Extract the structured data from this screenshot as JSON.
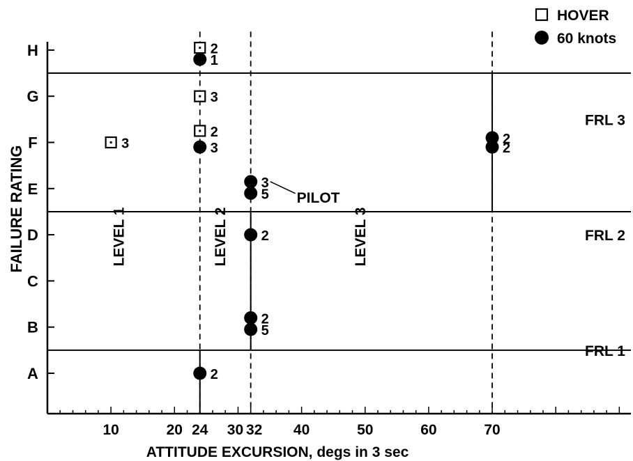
{
  "chart_data": {
    "type": "scatter",
    "xlabel": "ATTITUDE EXCURSION, degs in 3 sec",
    "ylabel": "FAILURE RATING",
    "xlim": [
      0,
      90
    ],
    "x_ticks": [
      10,
      20,
      24,
      30,
      32,
      40,
      50,
      60,
      70
    ],
    "x_tick_labels": [
      "10",
      "20",
      "24",
      "30",
      "32",
      "40",
      "50",
      "60",
      "70"
    ],
    "y_categories": [
      "A",
      "B",
      "C",
      "D",
      "E",
      "F",
      "G",
      "H"
    ],
    "legend": {
      "placement": "top-right",
      "entries": [
        {
          "label": "HOVER",
          "marker": "open-square"
        },
        {
          "label": "60 knots",
          "marker": "filled-circle"
        }
      ]
    },
    "series": [
      {
        "name": "HOVER",
        "points": [
          {
            "x": 24,
            "y": 8.05,
            "label": "2"
          },
          {
            "x": 24,
            "y": 7.0,
            "label": "3"
          },
          {
            "x": 24,
            "y": 6.25,
            "label": "2"
          },
          {
            "x": 10,
            "y": 6.0,
            "label": "3"
          }
        ]
      },
      {
        "name": "60 knots",
        "points": [
          {
            "x": 24,
            "y": 7.8,
            "label": "1"
          },
          {
            "x": 24,
            "y": 5.9,
            "label": "3"
          },
          {
            "x": 70,
            "y": 6.1,
            "label": "2"
          },
          {
            "x": 70,
            "y": 5.9,
            "label": "2"
          },
          {
            "x": 32,
            "y": 5.15,
            "label": "3"
          },
          {
            "x": 32,
            "y": 4.9,
            "label": "5"
          },
          {
            "x": 32,
            "y": 4.0,
            "label": "2"
          },
          {
            "x": 32,
            "y": 2.2,
            "label": "2"
          },
          {
            "x": 32,
            "y": 1.95,
            "label": "5"
          },
          {
            "x": 24,
            "y": 1.0,
            "label": "2"
          }
        ]
      }
    ],
    "boundaries_y": [
      1.5,
      4.5,
      7.5
    ],
    "frl_labels": [
      {
        "text": "FRL 1",
        "y": 1.5
      },
      {
        "text": "FRL 2",
        "y": 4.0
      },
      {
        "text": "FRL 3",
        "y": 6.5
      }
    ],
    "level_lines_x": [
      24,
      32,
      70
    ],
    "level_labels": [
      {
        "text": "LEVEL 1",
        "x": 12
      },
      {
        "text": "LEVEL 2",
        "x": 28
      },
      {
        "text": "LEVEL 3",
        "x": 50
      }
    ],
    "annotation": {
      "text": "PILOT"
    }
  }
}
